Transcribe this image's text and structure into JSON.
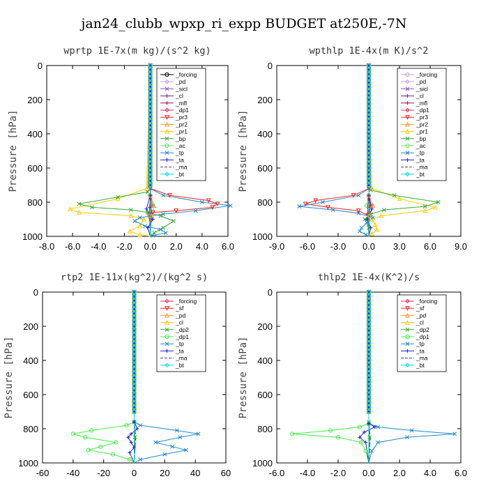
{
  "page": {
    "title": "jan24_clubb_wpxp_ri_expp  BUDGET at250E,-7N",
    "ylabel": "Pressure [hPa]"
  },
  "chart_data": [
    {
      "type": "line",
      "title": "wprtp  1E-7x(m kg)/(s^2 kg)",
      "ylabel": "Pressure [hPa]",
      "xlim": [
        -8,
        6
      ],
      "ylim": [
        1000,
        0
      ],
      "xticks": [
        "-8.0",
        "-6.0",
        "-4.0",
        "-2.0",
        "0.0",
        "2.0",
        "4.0",
        "6.0"
      ],
      "yticks": [
        "0",
        "200",
        "400",
        "600",
        "800",
        "1000"
      ],
      "series": [
        {
          "name": "_forcing",
          "color": "#000000",
          "marker": "circle",
          "x": [
            0,
            0
          ],
          "y": [
            0,
            1000
          ]
        },
        {
          "name": "_pd",
          "color": "#c8a2e8",
          "marker": "diamond",
          "x": [
            0,
            0
          ],
          "y": [
            0,
            1000
          ]
        },
        {
          "name": "_sicl",
          "color": "#8a5cc8",
          "marker": "x",
          "x": [
            0,
            0
          ],
          "y": [
            0,
            1000
          ]
        },
        {
          "name": "_cl",
          "color": "#6a2c8a",
          "marker": "plus",
          "x": [
            0,
            0,
            0.05,
            0
          ],
          "y": [
            0,
            760,
            820,
            1000
          ]
        },
        {
          "name": "_mfl",
          "color": "#a0105a",
          "marker": "plus",
          "x": [
            0,
            0,
            -0.05,
            0
          ],
          "y": [
            0,
            780,
            830,
            1000
          ]
        },
        {
          "name": "_dp1",
          "color": "#e03060",
          "marker": "diamond",
          "x": [
            0,
            0,
            0.1,
            -0.1,
            0
          ],
          "y": [
            0,
            760,
            820,
            870,
            1000
          ]
        },
        {
          "name": "_pr3",
          "color": "#ff2020",
          "marker": "triangle-down",
          "x": [
            0,
            0,
            1.5,
            4.5,
            5.2,
            4.8,
            2.0,
            0.2,
            0,
            0
          ],
          "y": [
            0,
            720,
            760,
            790,
            810,
            830,
            850,
            860,
            900,
            1000
          ]
        },
        {
          "name": "_pr2",
          "color": "#ff9933",
          "marker": "triangle",
          "x": [
            0,
            0,
            0.3,
            0.1,
            0
          ],
          "y": [
            0,
            760,
            820,
            880,
            1000
          ]
        },
        {
          "name": "_pr1",
          "color": "#ffcc00",
          "marker": "triangle",
          "x": [
            0,
            -0.3,
            -2.5,
            -6.2,
            -5.5,
            -1.5,
            -0.5,
            -0.8,
            -1.6,
            -0.8,
            0
          ],
          "y": [
            0,
            720,
            780,
            840,
            860,
            880,
            900,
            940,
            970,
            990,
            1000
          ]
        },
        {
          "name": "_bp",
          "color": "#33aa33",
          "marker": "x",
          "x": [
            0,
            -0.2,
            -2.5,
            -5.5,
            -4.5,
            -1.5,
            -0.2,
            0.8,
            1.8,
            1.0,
            0.3,
            0
          ],
          "y": [
            0,
            740,
            770,
            810,
            830,
            845,
            860,
            880,
            910,
            950,
            980,
            1000
          ]
        },
        {
          "name": "_ac",
          "color": "#66dd66",
          "marker": "circle",
          "x": [
            0,
            0,
            0.2,
            -0.1,
            0
          ],
          "y": [
            0,
            760,
            820,
            880,
            1000
          ]
        },
        {
          "name": "_tp",
          "color": "#2288cc",
          "marker": "x",
          "x": [
            0,
            0,
            1.0,
            4.0,
            6.2,
            3.5,
            1.0,
            -0.8,
            -1.2,
            -0.4,
            0.8,
            1.2,
            0.2,
            0
          ],
          "y": [
            0,
            720,
            760,
            800,
            820,
            850,
            870,
            890,
            910,
            940,
            960,
            980,
            995,
            1000
          ]
        },
        {
          "name": "_ta",
          "color": "#2222cc",
          "marker": "plus",
          "x": [
            0,
            0,
            -0.3,
            0.2,
            -0.2,
            0
          ],
          "y": [
            0,
            760,
            840,
            900,
            950,
            1000
          ]
        },
        {
          "name": "_ma",
          "color": "#444477",
          "marker": "none",
          "x": [
            0,
            0,
            0.1,
            0
          ],
          "y": [
            0,
            760,
            830,
            1000
          ]
        },
        {
          "name": "_bt",
          "color": "#00dddd",
          "marker": "diamond",
          "x": [
            0,
            0
          ],
          "y": [
            0,
            1000
          ]
        }
      ]
    },
    {
      "type": "line",
      "title": "wpthlp  1E-4x(m K)/s^2",
      "ylabel": "Pressure [hPa]",
      "xlim": [
        -9,
        9
      ],
      "ylim": [
        1000,
        0
      ],
      "xticks": [
        "-9.0",
        "-6.0",
        "-3.0",
        "0.0",
        "3.0",
        "6.0",
        "9.0"
      ],
      "yticks": [
        "0",
        "200",
        "400",
        "600",
        "800",
        "1000"
      ],
      "series": [
        {
          "name": "_forcing",
          "color": "#c8a2e8",
          "marker": "circle",
          "x": [
            0,
            0
          ],
          "y": [
            0,
            1000
          ]
        },
        {
          "name": "_pd",
          "color": "#c8a2e8",
          "marker": "diamond",
          "x": [
            0,
            0
          ],
          "y": [
            0,
            1000
          ]
        },
        {
          "name": "_sicl",
          "color": "#8a5cc8",
          "marker": "x",
          "x": [
            0,
            0
          ],
          "y": [
            0,
            1000
          ]
        },
        {
          "name": "_cl",
          "color": "#6a2c8a",
          "marker": "plus",
          "x": [
            0,
            0,
            0.1,
            0
          ],
          "y": [
            0,
            760,
            820,
            1000
          ]
        },
        {
          "name": "_mfl",
          "color": "#a0105a",
          "marker": "plus",
          "x": [
            0,
            0,
            -0.1,
            0
          ],
          "y": [
            0,
            780,
            830,
            1000
          ]
        },
        {
          "name": "_dp1",
          "color": "#e03060",
          "marker": "diamond",
          "x": [
            0,
            0,
            0.2,
            -0.1,
            0
          ],
          "y": [
            0,
            760,
            820,
            870,
            1000
          ]
        },
        {
          "name": "_pr3",
          "color": "#ff2020",
          "marker": "triangle-down",
          "x": [
            0,
            0,
            -1.5,
            -5.2,
            -6.2,
            -4.0,
            -1.0,
            0,
            0
          ],
          "y": [
            0,
            720,
            760,
            790,
            810,
            830,
            850,
            880,
            1000
          ]
        },
        {
          "name": "_pr2",
          "color": "#ff9933",
          "marker": "triangle",
          "x": [
            0,
            0,
            0.4,
            0.1,
            0
          ],
          "y": [
            0,
            760,
            820,
            880,
            1000
          ]
        },
        {
          "name": "_pr1",
          "color": "#ffcc00",
          "marker": "triangle",
          "x": [
            0,
            0.3,
            3.0,
            6.5,
            5.5,
            1.2,
            0.3,
            0.6,
            0.8,
            0.3,
            0
          ],
          "y": [
            0,
            720,
            780,
            830,
            850,
            880,
            900,
            930,
            960,
            985,
            1000
          ]
        },
        {
          "name": "_bp",
          "color": "#33aa33",
          "marker": "x",
          "x": [
            0,
            0.2,
            2.5,
            6.8,
            5.5,
            1.5,
            0.2,
            -0.4,
            0,
            0
          ],
          "y": [
            0,
            730,
            760,
            800,
            825,
            845,
            870,
            900,
            950,
            1000
          ]
        },
        {
          "name": "_ac",
          "color": "#66dd66",
          "marker": "circle",
          "x": [
            0,
            0,
            -0.2,
            0.1,
            0
          ],
          "y": [
            0,
            760,
            820,
            880,
            1000
          ]
        },
        {
          "name": "_tp",
          "color": "#2288cc",
          "marker": "x",
          "x": [
            0,
            0,
            -1.0,
            -4.5,
            -6.8,
            -3.5,
            -1.0,
            0.4,
            -0.2,
            -0.7,
            -0.9,
            -0.3,
            0
          ],
          "y": [
            0,
            720,
            760,
            800,
            825,
            845,
            865,
            890,
            920,
            950,
            970,
            990,
            1000
          ]
        },
        {
          "name": "_ta",
          "color": "#2222cc",
          "marker": "plus",
          "x": [
            0,
            0,
            0.3,
            -0.2,
            0.2,
            0
          ],
          "y": [
            0,
            760,
            840,
            900,
            950,
            1000
          ]
        },
        {
          "name": "_ma",
          "color": "#444477",
          "marker": "none",
          "x": [
            0,
            0,
            -0.1,
            0
          ],
          "y": [
            0,
            760,
            830,
            1000
          ]
        },
        {
          "name": "_bt",
          "color": "#00dddd",
          "marker": "diamond",
          "x": [
            0,
            0
          ],
          "y": [
            0,
            1000
          ]
        }
      ]
    },
    {
      "type": "line",
      "title": "rtp2  1E-11x(kg^2)/(kg^2 s)",
      "ylabel": "Pressure [hPa]",
      "xlim": [
        -60,
        60
      ],
      "ylim": [
        1000,
        0
      ],
      "xticks": [
        "-60",
        "-40",
        "-20",
        "0",
        "20",
        "40",
        "60"
      ],
      "yticks": [
        "0",
        "200",
        "400",
        "600",
        "800",
        "1000"
      ],
      "series": [
        {
          "name": "_forcing",
          "color": "#e03060",
          "marker": "diamond",
          "x": [
            0,
            0
          ],
          "y": [
            0,
            1000
          ]
        },
        {
          "name": "_sf",
          "color": "#ff2020",
          "marker": "triangle-down",
          "x": [
            0,
            0
          ],
          "y": [
            0,
            1000
          ]
        },
        {
          "name": "_pd",
          "color": "#ff9933",
          "marker": "triangle",
          "x": [
            0,
            0
          ],
          "y": [
            0,
            1000
          ]
        },
        {
          "name": "_cl",
          "color": "#ffcc00",
          "marker": "triangle",
          "x": [
            0,
            0
          ],
          "y": [
            0,
            1000
          ]
        },
        {
          "name": "_dp2",
          "color": "#33aa33",
          "marker": "x",
          "x": [
            0,
            0,
            0.5,
            0
          ],
          "y": [
            0,
            760,
            850,
            1000
          ]
        },
        {
          "name": "_dp1",
          "color": "#44ee44",
          "marker": "circle",
          "x": [
            0,
            0,
            -5,
            -28,
            -40,
            -32,
            -12,
            -22,
            -30,
            -14,
            -3,
            0
          ],
          "y": [
            0,
            760,
            780,
            810,
            830,
            850,
            880,
            905,
            925,
            950,
            980,
            1000
          ]
        },
        {
          "name": "_tp",
          "color": "#2288cc",
          "marker": "x",
          "x": [
            0,
            0,
            4,
            28,
            42,
            30,
            14,
            25,
            34,
            20,
            4,
            0
          ],
          "y": [
            0,
            760,
            780,
            810,
            830,
            850,
            880,
            905,
            925,
            950,
            980,
            1000
          ]
        },
        {
          "name": "_ta",
          "color": "#2222cc",
          "marker": "plus",
          "x": [
            0,
            0,
            2,
            -2,
            -4,
            -2,
            0,
            -3,
            0
          ],
          "y": [
            0,
            760,
            800,
            830,
            850,
            880,
            910,
            940,
            1000
          ]
        },
        {
          "name": "_ma",
          "color": "#444477",
          "marker": "none",
          "x": [
            0,
            0,
            1,
            0
          ],
          "y": [
            0,
            760,
            850,
            1000
          ]
        },
        {
          "name": "_bt",
          "color": "#00dddd",
          "marker": "diamond",
          "x": [
            0,
            0
          ],
          "y": [
            0,
            1000
          ]
        }
      ]
    },
    {
      "type": "line",
      "title": "thlp2  1E-4x(K^2)/s",
      "ylabel": "Pressure [hPa]",
      "xlim": [
        -6,
        6
      ],
      "ylim": [
        1000,
        0
      ],
      "xticks": [
        "-6.0",
        "-4.0",
        "-2.0",
        "0.0",
        "2.0",
        "4.0",
        "6.0"
      ],
      "yticks": [
        "0",
        "200",
        "400",
        "600",
        "800",
        "1000"
      ],
      "series": [
        {
          "name": "_forcing",
          "color": "#e03060",
          "marker": "diamond",
          "x": [
            0,
            0
          ],
          "y": [
            0,
            1000
          ]
        },
        {
          "name": "_sf",
          "color": "#ff2020",
          "marker": "triangle-down",
          "x": [
            0,
            0
          ],
          "y": [
            0,
            1000
          ]
        },
        {
          "name": "_pd",
          "color": "#ff9933",
          "marker": "triangle",
          "x": [
            0,
            0
          ],
          "y": [
            0,
            1000
          ]
        },
        {
          "name": "_cl",
          "color": "#ffcc00",
          "marker": "triangle",
          "x": [
            0,
            0
          ],
          "y": [
            0,
            1000
          ]
        },
        {
          "name": "_dp2",
          "color": "#33aa33",
          "marker": "x",
          "x": [
            0,
            0,
            0.05,
            0
          ],
          "y": [
            0,
            760,
            850,
            1000
          ]
        },
        {
          "name": "_dp1",
          "color": "#44ee44",
          "marker": "circle",
          "x": [
            0,
            0,
            -0.6,
            -2.5,
            -5.0,
            -2.0,
            -0.5,
            -0.2,
            0
          ],
          "y": [
            0,
            770,
            790,
            810,
            830,
            850,
            880,
            930,
            1000
          ]
        },
        {
          "name": "_tp",
          "color": "#2288cc",
          "marker": "x",
          "x": [
            0,
            0,
            0.6,
            2.8,
            5.6,
            2.5,
            0.6,
            0.2,
            0
          ],
          "y": [
            0,
            770,
            790,
            810,
            830,
            850,
            880,
            930,
            1000
          ]
        },
        {
          "name": "_ta",
          "color": "#2222cc",
          "marker": "plus",
          "x": [
            0,
            0,
            0.4,
            -0.3,
            -0.6,
            -0.2,
            0
          ],
          "y": [
            0,
            770,
            790,
            820,
            850,
            880,
            1000
          ]
        },
        {
          "name": "_ma",
          "color": "#444477",
          "marker": "none",
          "x": [
            0,
            0,
            0.1,
            0
          ],
          "y": [
            0,
            760,
            850,
            1000
          ]
        },
        {
          "name": "_bt",
          "color": "#00dddd",
          "marker": "diamond",
          "x": [
            0,
            0
          ],
          "y": [
            0,
            1000
          ]
        }
      ]
    }
  ]
}
